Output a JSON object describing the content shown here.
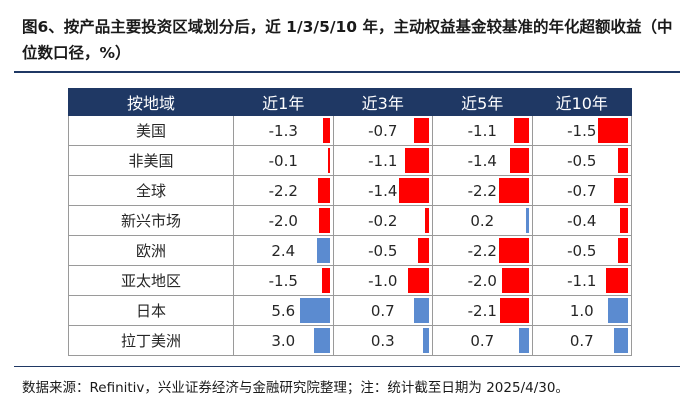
{
  "title": "图6、按产品主要投资区域划分后，近 1/3/5/10 年，主动权益基金较基准的年化超额收益（中位数口径，%）",
  "footnote": "数据来源：Refinitiv，兴业证券经济与金融研究院整理；注：统计截至日期为 2025/4/30。",
  "colors": {
    "header_bg": "#1f3864",
    "negative_bar": "#ff0000",
    "positive_bar": "#5b8bd0"
  },
  "chart_data": {
    "type": "table",
    "title": "图6、按产品主要投资区域划分后，近 1/3/5/10 年，主动权益基金较基准的年化超额收益（中位数口径，%）",
    "columns": [
      "按地域",
      "近1年",
      "近3年",
      "近5年",
      "近10年"
    ],
    "rows": [
      {
        "region": "美国",
        "values": [
          -1.3,
          -0.7,
          -1.1,
          -1.5
        ]
      },
      {
        "region": "非美国",
        "values": [
          -0.1,
          -1.1,
          -1.4,
          -0.5
        ]
      },
      {
        "region": "全球",
        "values": [
          -2.2,
          -1.4,
          -2.2,
          -0.7
        ]
      },
      {
        "region": "新兴市场",
        "values": [
          -2.0,
          -0.2,
          0.2,
          -0.4
        ]
      },
      {
        "region": "欧洲",
        "values": [
          2.4,
          -0.5,
          -2.2,
          -0.5
        ]
      },
      {
        "region": "亚太地区",
        "values": [
          -1.5,
          -1.0,
          -2.0,
          -1.1
        ]
      },
      {
        "region": "日本",
        "values": [
          5.6,
          0.7,
          -2.1,
          1.0
        ]
      },
      {
        "region": "拉丁美洲",
        "values": [
          3.0,
          0.3,
          0.7,
          0.7
        ]
      }
    ],
    "display_values": [
      [
        "-1.3",
        "-0.7",
        "-1.1",
        "-1.5"
      ],
      [
        "-0.1",
        "-1.1",
        "-1.4",
        "-0.5"
      ],
      [
        "-2.2",
        "-1.4",
        "-2.2",
        "-0.7"
      ],
      [
        "-2.0",
        "-0.2",
        "0.2",
        "-0.4"
      ],
      [
        "2.4",
        "-0.5",
        "-2.2",
        "-0.5"
      ],
      [
        "-1.5",
        "-1.0",
        "-2.0",
        "-1.1"
      ],
      [
        "5.6",
        "0.7",
        "-2.1",
        "1.0"
      ],
      [
        "3.0",
        "0.3",
        "0.7",
        "0.7"
      ]
    ]
  }
}
